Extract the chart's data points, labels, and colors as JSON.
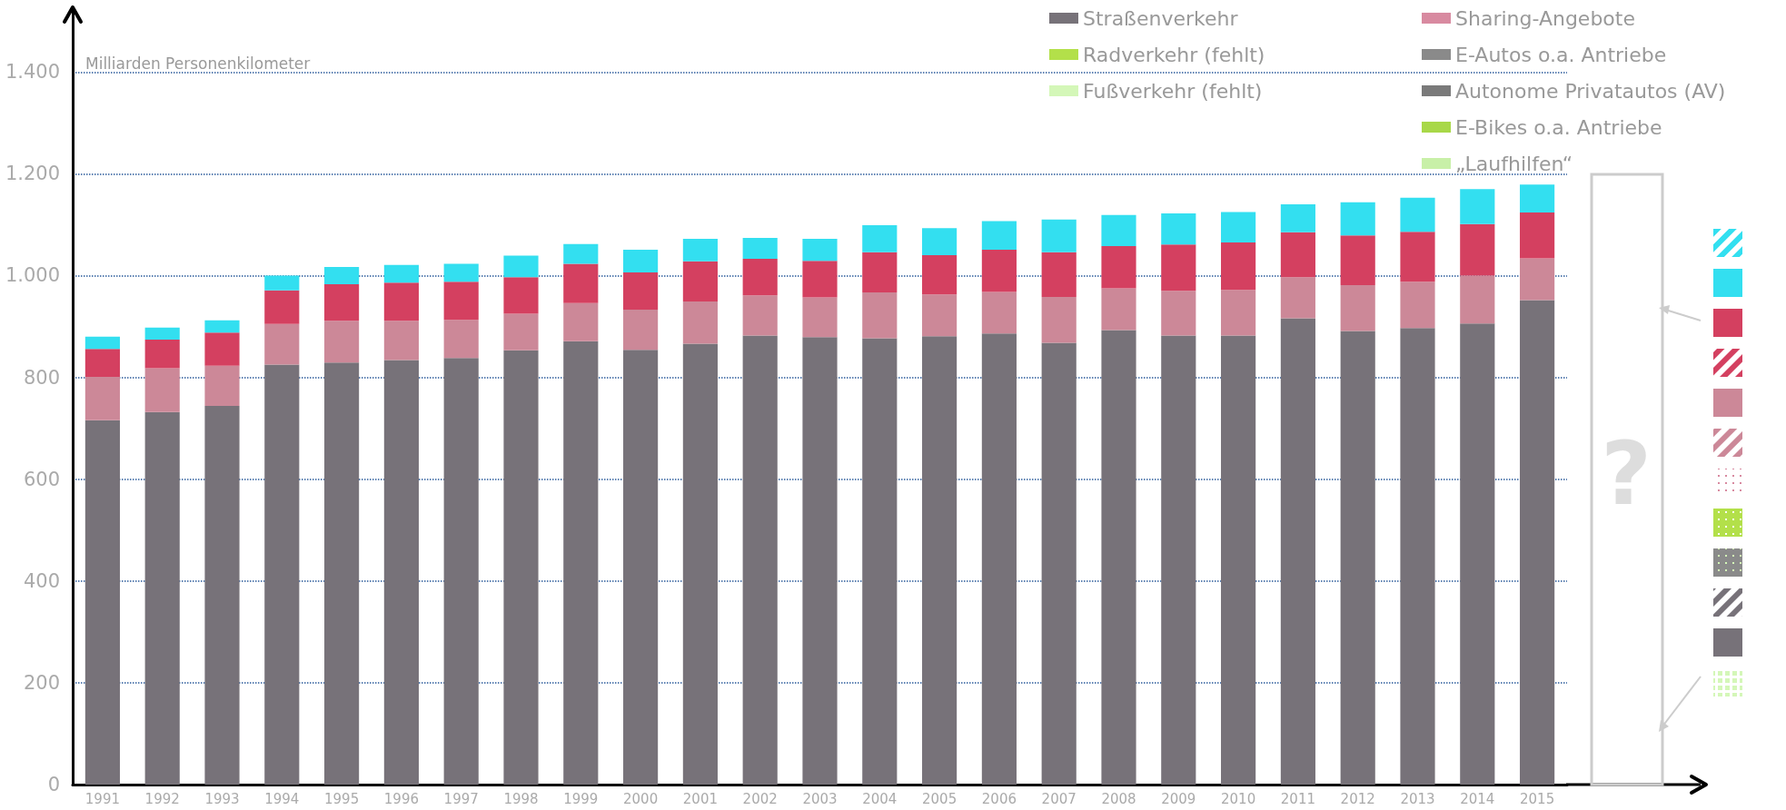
{
  "chart_data": {
    "type": "bar",
    "stacked": true,
    "ylabel": "Milliarden Personenkilometer",
    "categories": [
      "1991",
      "1992",
      "1993",
      "1994",
      "1995",
      "1996",
      "1997",
      "1998",
      "1999",
      "2000",
      "2001",
      "2002",
      "2003",
      "2004",
      "2005",
      "2006",
      "2007",
      "2008",
      "2009",
      "2010",
      "2011",
      "2012",
      "2013",
      "2014",
      "2015"
    ],
    "series": [
      {
        "name": "Straßenverkehr",
        "color": "#777279",
        "values": [
          716,
          732,
          744,
          825,
          829,
          834,
          838,
          853,
          871,
          854,
          866,
          882,
          879,
          877,
          881,
          886,
          868,
          893,
          882,
          882,
          916,
          891,
          897,
          906,
          952
        ]
      },
      {
        "color": "#cc8898",
        "values": [
          85,
          86,
          79,
          80,
          82,
          77,
          75,
          72,
          75,
          79,
          83,
          79,
          78,
          90,
          82,
          82,
          90,
          82,
          88,
          90,
          81,
          90,
          91,
          94,
          82
        ]
      },
      {
        "color": "#d44060",
        "values": [
          55,
          56,
          65,
          66,
          72,
          75,
          75,
          72,
          77,
          73,
          79,
          72,
          72,
          79,
          77,
          83,
          88,
          83,
          91,
          93,
          88,
          98,
          98,
          101,
          90
        ]
      },
      {
        "color": "#33dff0",
        "values": [
          24,
          24,
          24,
          29,
          34,
          35,
          35,
          42,
          39,
          45,
          44,
          41,
          43,
          53,
          53,
          56,
          64,
          61,
          61,
          60,
          55,
          65,
          67,
          69,
          55
        ]
      },
      {
        "name": "Radverkehr (fehlt)",
        "color": "#b3e04a",
        "values": [
          null,
          null,
          null,
          null,
          null,
          null,
          null,
          null,
          null,
          null,
          null,
          null,
          null,
          null,
          null,
          null,
          null,
          null,
          null,
          null,
          null,
          null,
          null,
          null,
          null
        ]
      },
      {
        "name": "Fußverkehr (fehlt)",
        "color": "#d4f7b8",
        "values": [
          null,
          null,
          null,
          null,
          null,
          null,
          null,
          null,
          null,
          null,
          null,
          null,
          null,
          null,
          null,
          null,
          null,
          null,
          null,
          null,
          null,
          null,
          null,
          null,
          null
        ]
      },
      {
        "name": "Sharing-Angebote",
        "color": "#d88aa0",
        "values": [
          null,
          null,
          null,
          null,
          null,
          null,
          null,
          null,
          null,
          null,
          null,
          null,
          null,
          null,
          null,
          null,
          null,
          null,
          null,
          null,
          null,
          null,
          null,
          null,
          null
        ]
      },
      {
        "name": "E-Autos o.a. Antriebe",
        "color": "#8a8a8a",
        "values": [
          null,
          null,
          null,
          null,
          null,
          null,
          null,
          null,
          null,
          null,
          null,
          null,
          null,
          null,
          null,
          null,
          null,
          null,
          null,
          null,
          null,
          null,
          null,
          null,
          null
        ]
      },
      {
        "name": "Autonome Privatautos (AV)",
        "color": "#7a7a7a",
        "values": [
          null,
          null,
          null,
          null,
          null,
          null,
          null,
          null,
          null,
          null,
          null,
          null,
          null,
          null,
          null,
          null,
          null,
          null,
          null,
          null,
          null,
          null,
          null,
          null,
          null
        ]
      },
      {
        "name": "E-Bikes o.a. Antriebe",
        "color": "#a8d848",
        "values": [
          null,
          null,
          null,
          null,
          null,
          null,
          null,
          null,
          null,
          null,
          null,
          null,
          null,
          null,
          null,
          null,
          null,
          null,
          null,
          null,
          null,
          null,
          null,
          null,
          null
        ]
      },
      {
        "name": "„Laufhilfen“",
        "color": "#c8f0a8",
        "values": [
          null,
          null,
          null,
          null,
          null,
          null,
          null,
          null,
          null,
          null,
          null,
          null,
          null,
          null,
          null,
          null,
          null,
          null,
          null,
          null,
          null,
          null,
          null,
          null,
          null
        ]
      }
    ],
    "ylim": [
      0,
      1520
    ],
    "yticks": [
      0,
      200,
      400,
      600,
      800,
      {
        "value": 1000,
        "label": "1.000"
      },
      {
        "value": 1200,
        "label": "1.200"
      },
      {
        "value": 1400,
        "label": "1.400"
      }
    ],
    "grid": "y",
    "legend": "top right",
    "annotations": [
      "?"
    ]
  }
}
